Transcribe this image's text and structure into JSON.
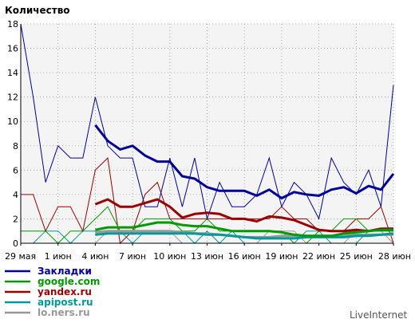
{
  "chart_data": {
    "type": "line",
    "ylabel": "Количество",
    "ylim": [
      0,
      18
    ],
    "yticks": [
      0,
      2,
      4,
      6,
      8,
      10,
      12,
      14,
      16,
      18
    ],
    "xticks": [
      "29 мая",
      "1 июн",
      "4 июн",
      "7 июн",
      "10 июн",
      "13 июн",
      "16 июн",
      "19 июн",
      "22 июн",
      "25 июн",
      "28 июн"
    ],
    "grid": true,
    "series": [
      {
        "name": "Закладки",
        "color": "#000099",
        "daily": [
          18,
          12,
          5,
          8,
          7,
          7,
          12,
          8,
          7,
          7,
          3,
          3,
          7,
          3,
          7,
          2,
          5,
          3,
          3,
          4,
          7,
          3,
          5,
          4,
          2,
          7,
          5,
          4,
          6,
          3,
          13
        ],
        "trend": [
          null,
          null,
          null,
          null,
          null,
          null,
          9.7,
          8.4,
          7.7,
          8.0,
          7.2,
          6.7,
          6.7,
          5.5,
          5.3,
          4.6,
          4.3,
          4.3,
          4.3,
          3.9,
          4.4,
          3.7,
          4.2,
          4.0,
          3.9,
          4.4,
          4.6,
          4.1,
          4.7,
          4.4,
          5.7
        ]
      },
      {
        "name": "google.com",
        "color": "#009900",
        "daily": [
          1,
          1,
          1,
          0,
          1,
          1,
          2,
          3,
          1,
          1,
          2,
          2,
          2,
          1,
          1,
          2,
          1,
          1,
          1,
          1,
          1,
          1,
          0,
          0,
          1,
          1,
          2,
          2,
          1,
          1,
          1
        ],
        "trend": [
          null,
          null,
          null,
          null,
          null,
          null,
          1.1,
          1.3,
          1.3,
          1.3,
          1.5,
          1.7,
          1.7,
          1.5,
          1.4,
          1.4,
          1.2,
          1.0,
          1.0,
          1.0,
          1.0,
          0.9,
          0.7,
          0.6,
          0.6,
          0.6,
          0.8,
          0.9,
          1.0,
          1.1,
          1.1
        ]
      },
      {
        "name": "yandex.ru",
        "color": "#990000",
        "daily": [
          4,
          4,
          1,
          3,
          3,
          1,
          6,
          7,
          0,
          1,
          4,
          5,
          2,
          2,
          2,
          2,
          2,
          2,
          2,
          2,
          2,
          3,
          2,
          2,
          1,
          1,
          1,
          2,
          2,
          3,
          0
        ],
        "trend": [
          null,
          null,
          null,
          null,
          null,
          null,
          3.2,
          3.6,
          3.0,
          3.0,
          3.3,
          3.6,
          3.0,
          2.1,
          2.4,
          2.5,
          2.4,
          2.0,
          2.0,
          1.8,
          2.2,
          2.1,
          1.9,
          1.5,
          1.1,
          1.0,
          1.0,
          1.1,
          1.0,
          1.2,
          1.2
        ]
      },
      {
        "name": "apipost.ru",
        "color": "#009999",
        "daily": [
          0,
          0,
          1,
          1,
          0,
          1,
          1,
          1,
          1,
          0,
          1,
          1,
          1,
          1,
          0,
          1,
          0,
          1,
          0,
          0,
          0,
          0,
          0,
          1,
          1,
          0,
          0,
          0,
          1,
          1,
          1
        ],
        "trend": [
          null,
          null,
          null,
          null,
          null,
          null,
          0.7,
          0.8,
          0.8,
          0.8,
          0.8,
          0.8,
          0.8,
          0.8,
          0.8,
          0.7,
          0.7,
          0.6,
          0.5,
          0.4,
          0.4,
          0.4,
          0.4,
          0.5,
          0.5,
          0.5,
          0.5,
          0.6,
          0.6,
          0.7,
          0.8
        ]
      },
      {
        "name": "lo.ners.ru",
        "color": "#999999",
        "daily": [
          0,
          0,
          0,
          0,
          0,
          0,
          0,
          1,
          1,
          1,
          1,
          1,
          1,
          0,
          0,
          0,
          0,
          0,
          0,
          0,
          1,
          1,
          1,
          0,
          0,
          0,
          0,
          1,
          1,
          1,
          0
        ],
        "trend": [
          null,
          null,
          null,
          null,
          null,
          null,
          0.9,
          1.0,
          1.0,
          1.0,
          1.0,
          1.0,
          1.0,
          0.9,
          0.8,
          0.8,
          0.7,
          0.6,
          0.5,
          0.5,
          0.5,
          0.6,
          0.6,
          0.6,
          0.6,
          0.6,
          0.6,
          0.7,
          0.7,
          0.7,
          0.7
        ]
      }
    ]
  },
  "credit": "LiveInternet"
}
